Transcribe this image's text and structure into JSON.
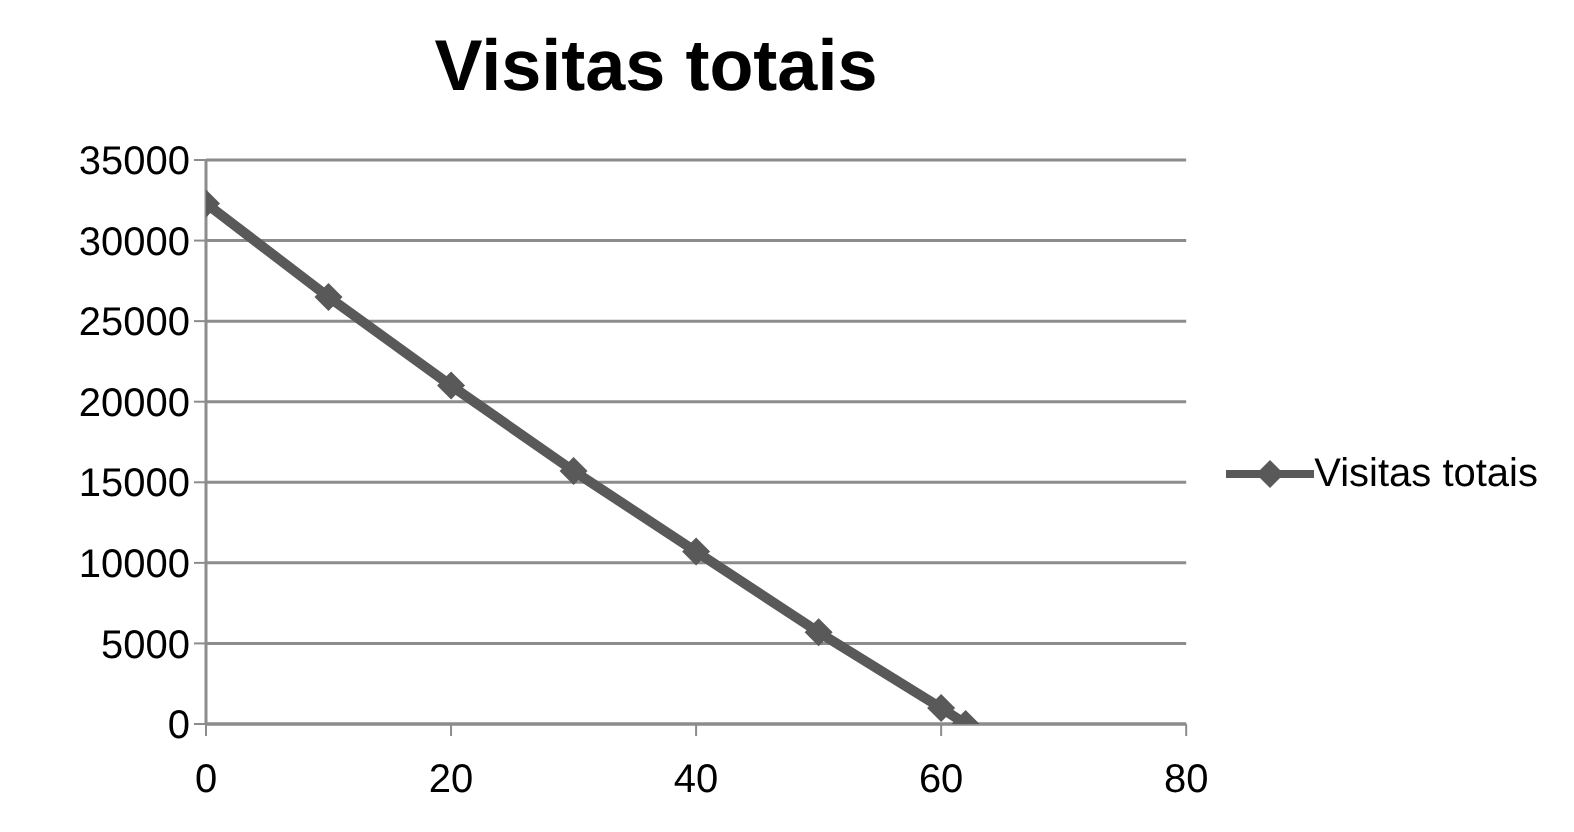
{
  "chart_data": {
    "type": "line",
    "title": "Visitas totais",
    "x": [
      0,
      10,
      20,
      30,
      40,
      50,
      60,
      62
    ],
    "series": [
      {
        "name": "Visitas totais",
        "color": "#595959",
        "values": [
          32300,
          26500,
          21000,
          15700,
          10700,
          5700,
          1000,
          0
        ]
      }
    ],
    "xlim": [
      0,
      80
    ],
    "xticks": [
      0,
      20,
      40,
      60,
      80
    ],
    "ylim": [
      0,
      35000
    ],
    "yticks": [
      0,
      5000,
      10000,
      15000,
      20000,
      25000,
      30000,
      35000
    ],
    "grid": "y",
    "legend": "right",
    "marker": "diamond",
    "line_style": "solid"
  }
}
